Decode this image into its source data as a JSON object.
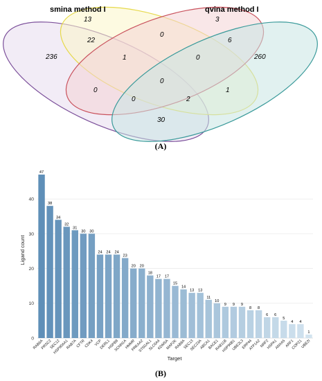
{
  "panels": {
    "a_label": "(A)",
    "b_label": "(B)"
  },
  "venn": {
    "set_labels": [
      "smina method I",
      "qvina method I"
    ],
    "colors": [
      "#7b4f9a",
      "#e6d94a",
      "#c9525d",
      "#3a9a9a"
    ],
    "fills": [
      "#e8dcef",
      "#fbf6c8",
      "#f4d3d6",
      "#c9e6e4"
    ],
    "counts": [
      {
        "id": "count-236",
        "value": "236"
      },
      {
        "id": "count-13",
        "value": "13"
      },
      {
        "id": "count-3",
        "value": "3"
      },
      {
        "id": "count-260",
        "value": "260"
      },
      {
        "id": "count-22",
        "value": "22"
      },
      {
        "id": "count-0-top",
        "value": "0"
      },
      {
        "id": "count-6",
        "value": "6"
      },
      {
        "id": "count-1-left",
        "value": "1"
      },
      {
        "id": "count-0-right",
        "value": "0"
      },
      {
        "id": "count-0-center",
        "value": "0"
      },
      {
        "id": "count-0-left",
        "value": "0"
      },
      {
        "id": "count-1-right",
        "value": "1"
      },
      {
        "id": "count-0-bottom",
        "value": "0"
      },
      {
        "id": "count-2",
        "value": "2"
      },
      {
        "id": "count-30",
        "value": "30"
      }
    ]
  },
  "chart_data": {
    "type": "bar",
    "xlabel": "Target",
    "ylabel": "Ligand count",
    "ylim": [
      0,
      48
    ],
    "yticks": [
      0,
      10,
      20,
      30,
      40
    ],
    "grid": true,
    "categories": [
      "RAB6A",
      "PRSC2",
      "SEC12",
      "HSP90AA1",
      "RAB7A",
      "CFTR",
      "CDK4",
      "VCP",
      "DERL1",
      "HSPB8",
      "SCNN1A",
      "HMMR",
      "PRKAA2",
      "ST6GAL1",
      "SLC6A4",
      "KDM5A",
      "MAP2K",
      "RAB8A",
      "SEC13",
      "SEC23A",
      "ABCA1",
      "BACE1",
      "RAB11B",
      "HSP90B1",
      "UBE2L3",
      "ERP44",
      "ATP1A2",
      "NRF2",
      "HSPA1",
      "ANXA5",
      "ARF1",
      "COPZ1",
      "UBE2I"
    ],
    "values": [
      47,
      38,
      34,
      32,
      31,
      30,
      30,
      24,
      24,
      24,
      23,
      20,
      20,
      18,
      17,
      17,
      15,
      14,
      13,
      13,
      11,
      10,
      9,
      9,
      9,
      8,
      8,
      6,
      6,
      5,
      4,
      4,
      1
    ],
    "color_dark": "#5f8fb8",
    "color_light": "#d2e3ef"
  }
}
